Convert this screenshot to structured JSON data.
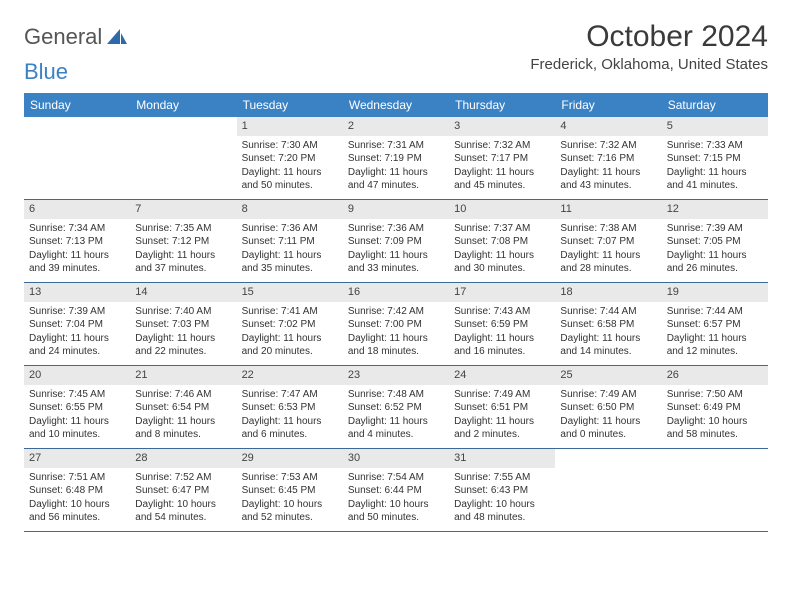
{
  "logo": {
    "word1": "General",
    "word2": "Blue"
  },
  "title": "October 2024",
  "location": "Frederick, Oklahoma, United States",
  "colors": {
    "header_bg": "#3b82c4",
    "daynum_bg": "#e9e9e9",
    "week_border": "#3b6a9a"
  },
  "dows": [
    "Sunday",
    "Monday",
    "Tuesday",
    "Wednesday",
    "Thursday",
    "Friday",
    "Saturday"
  ],
  "weeks": [
    [
      null,
      null,
      {
        "n": "1",
        "sr": "Sunrise: 7:30 AM",
        "ss": "Sunset: 7:20 PM",
        "d1": "Daylight: 11 hours",
        "d2": "and 50 minutes."
      },
      {
        "n": "2",
        "sr": "Sunrise: 7:31 AM",
        "ss": "Sunset: 7:19 PM",
        "d1": "Daylight: 11 hours",
        "d2": "and 47 minutes."
      },
      {
        "n": "3",
        "sr": "Sunrise: 7:32 AM",
        "ss": "Sunset: 7:17 PM",
        "d1": "Daylight: 11 hours",
        "d2": "and 45 minutes."
      },
      {
        "n": "4",
        "sr": "Sunrise: 7:32 AM",
        "ss": "Sunset: 7:16 PM",
        "d1": "Daylight: 11 hours",
        "d2": "and 43 minutes."
      },
      {
        "n": "5",
        "sr": "Sunrise: 7:33 AM",
        "ss": "Sunset: 7:15 PM",
        "d1": "Daylight: 11 hours",
        "d2": "and 41 minutes."
      }
    ],
    [
      {
        "n": "6",
        "sr": "Sunrise: 7:34 AM",
        "ss": "Sunset: 7:13 PM",
        "d1": "Daylight: 11 hours",
        "d2": "and 39 minutes."
      },
      {
        "n": "7",
        "sr": "Sunrise: 7:35 AM",
        "ss": "Sunset: 7:12 PM",
        "d1": "Daylight: 11 hours",
        "d2": "and 37 minutes."
      },
      {
        "n": "8",
        "sr": "Sunrise: 7:36 AM",
        "ss": "Sunset: 7:11 PM",
        "d1": "Daylight: 11 hours",
        "d2": "and 35 minutes."
      },
      {
        "n": "9",
        "sr": "Sunrise: 7:36 AM",
        "ss": "Sunset: 7:09 PM",
        "d1": "Daylight: 11 hours",
        "d2": "and 33 minutes."
      },
      {
        "n": "10",
        "sr": "Sunrise: 7:37 AM",
        "ss": "Sunset: 7:08 PM",
        "d1": "Daylight: 11 hours",
        "d2": "and 30 minutes."
      },
      {
        "n": "11",
        "sr": "Sunrise: 7:38 AM",
        "ss": "Sunset: 7:07 PM",
        "d1": "Daylight: 11 hours",
        "d2": "and 28 minutes."
      },
      {
        "n": "12",
        "sr": "Sunrise: 7:39 AM",
        "ss": "Sunset: 7:05 PM",
        "d1": "Daylight: 11 hours",
        "d2": "and 26 minutes."
      }
    ],
    [
      {
        "n": "13",
        "sr": "Sunrise: 7:39 AM",
        "ss": "Sunset: 7:04 PM",
        "d1": "Daylight: 11 hours",
        "d2": "and 24 minutes."
      },
      {
        "n": "14",
        "sr": "Sunrise: 7:40 AM",
        "ss": "Sunset: 7:03 PM",
        "d1": "Daylight: 11 hours",
        "d2": "and 22 minutes."
      },
      {
        "n": "15",
        "sr": "Sunrise: 7:41 AM",
        "ss": "Sunset: 7:02 PM",
        "d1": "Daylight: 11 hours",
        "d2": "and 20 minutes."
      },
      {
        "n": "16",
        "sr": "Sunrise: 7:42 AM",
        "ss": "Sunset: 7:00 PM",
        "d1": "Daylight: 11 hours",
        "d2": "and 18 minutes."
      },
      {
        "n": "17",
        "sr": "Sunrise: 7:43 AM",
        "ss": "Sunset: 6:59 PM",
        "d1": "Daylight: 11 hours",
        "d2": "and 16 minutes."
      },
      {
        "n": "18",
        "sr": "Sunrise: 7:44 AM",
        "ss": "Sunset: 6:58 PM",
        "d1": "Daylight: 11 hours",
        "d2": "and 14 minutes."
      },
      {
        "n": "19",
        "sr": "Sunrise: 7:44 AM",
        "ss": "Sunset: 6:57 PM",
        "d1": "Daylight: 11 hours",
        "d2": "and 12 minutes."
      }
    ],
    [
      {
        "n": "20",
        "sr": "Sunrise: 7:45 AM",
        "ss": "Sunset: 6:55 PM",
        "d1": "Daylight: 11 hours",
        "d2": "and 10 minutes."
      },
      {
        "n": "21",
        "sr": "Sunrise: 7:46 AM",
        "ss": "Sunset: 6:54 PM",
        "d1": "Daylight: 11 hours",
        "d2": "and 8 minutes."
      },
      {
        "n": "22",
        "sr": "Sunrise: 7:47 AM",
        "ss": "Sunset: 6:53 PM",
        "d1": "Daylight: 11 hours",
        "d2": "and 6 minutes."
      },
      {
        "n": "23",
        "sr": "Sunrise: 7:48 AM",
        "ss": "Sunset: 6:52 PM",
        "d1": "Daylight: 11 hours",
        "d2": "and 4 minutes."
      },
      {
        "n": "24",
        "sr": "Sunrise: 7:49 AM",
        "ss": "Sunset: 6:51 PM",
        "d1": "Daylight: 11 hours",
        "d2": "and 2 minutes."
      },
      {
        "n": "25",
        "sr": "Sunrise: 7:49 AM",
        "ss": "Sunset: 6:50 PM",
        "d1": "Daylight: 11 hours",
        "d2": "and 0 minutes."
      },
      {
        "n": "26",
        "sr": "Sunrise: 7:50 AM",
        "ss": "Sunset: 6:49 PM",
        "d1": "Daylight: 10 hours",
        "d2": "and 58 minutes."
      }
    ],
    [
      {
        "n": "27",
        "sr": "Sunrise: 7:51 AM",
        "ss": "Sunset: 6:48 PM",
        "d1": "Daylight: 10 hours",
        "d2": "and 56 minutes."
      },
      {
        "n": "28",
        "sr": "Sunrise: 7:52 AM",
        "ss": "Sunset: 6:47 PM",
        "d1": "Daylight: 10 hours",
        "d2": "and 54 minutes."
      },
      {
        "n": "29",
        "sr": "Sunrise: 7:53 AM",
        "ss": "Sunset: 6:45 PM",
        "d1": "Daylight: 10 hours",
        "d2": "and 52 minutes."
      },
      {
        "n": "30",
        "sr": "Sunrise: 7:54 AM",
        "ss": "Sunset: 6:44 PM",
        "d1": "Daylight: 10 hours",
        "d2": "and 50 minutes."
      },
      {
        "n": "31",
        "sr": "Sunrise: 7:55 AM",
        "ss": "Sunset: 6:43 PM",
        "d1": "Daylight: 10 hours",
        "d2": "and 48 minutes."
      },
      null,
      null
    ]
  ]
}
